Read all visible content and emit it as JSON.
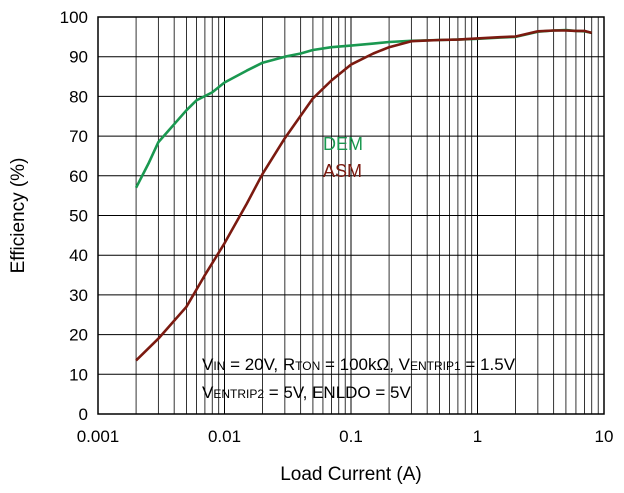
{
  "chart_data": {
    "type": "line",
    "xlabel": "Load Current (A)",
    "ylabel": "Efficiency (%)",
    "xscale": "log",
    "xlim": [
      0.001,
      10
    ],
    "ylim": [
      0,
      100
    ],
    "grid": true,
    "x_ticks": [
      {
        "value": 0.001,
        "label": "0.001"
      },
      {
        "value": 0.01,
        "label": "0.01"
      },
      {
        "value": 0.1,
        "label": "0.1"
      },
      {
        "value": 1,
        "label": "1"
      },
      {
        "value": 10,
        "label": "10"
      }
    ],
    "y_ticks": [
      {
        "value": 0,
        "label": "0"
      },
      {
        "value": 10,
        "label": "10"
      },
      {
        "value": 20,
        "label": "20"
      },
      {
        "value": 30,
        "label": "30"
      },
      {
        "value": 40,
        "label": "40"
      },
      {
        "value": 50,
        "label": "50"
      },
      {
        "value": 60,
        "label": "60"
      },
      {
        "value": 70,
        "label": "70"
      },
      {
        "value": 80,
        "label": "80"
      },
      {
        "value": 90,
        "label": "90"
      },
      {
        "value": 100,
        "label": "100"
      }
    ],
    "series": [
      {
        "name": "DEM",
        "color": "#1a9850",
        "x": [
          0.002,
          0.0025,
          0.003,
          0.004,
          0.005,
          0.006,
          0.008,
          0.01,
          0.015,
          0.02,
          0.03,
          0.04,
          0.05,
          0.07,
          0.1,
          0.15,
          0.2,
          0.3,
          0.5,
          0.7,
          1,
          1.5,
          2,
          3,
          4,
          5,
          6,
          7,
          8
        ],
        "y": [
          57,
          63,
          68.5,
          73,
          76.5,
          79,
          81,
          83.5,
          86.5,
          88.5,
          90,
          90.8,
          91.7,
          92.4,
          92.8,
          93.3,
          93.7,
          94,
          94.2,
          94.3,
          94.5,
          94.8,
          95,
          96.3,
          96.6,
          96.7,
          96.5,
          96.4,
          96
        ]
      },
      {
        "name": "ASM",
        "color": "#7b1a10",
        "x": [
          0.002,
          0.003,
          0.005,
          0.007,
          0.01,
          0.015,
          0.02,
          0.03,
          0.05,
          0.07,
          0.1,
          0.15,
          0.2,
          0.3,
          0.5,
          0.7,
          1,
          1.5,
          2,
          3,
          4,
          5,
          6,
          7,
          8
        ],
        "y": [
          13.5,
          19,
          27,
          35,
          43,
          53,
          60.5,
          69.5,
          79.5,
          84,
          88,
          90.8,
          92.4,
          93.9,
          94.2,
          94.3,
          94.6,
          94.9,
          95.1,
          96.4,
          96.6,
          96.6,
          96.5,
          96.5,
          96
        ]
      }
    ],
    "annotations": {
      "condition_line1": [
        {
          "text": "V",
          "sub": false
        },
        {
          "text": "IN",
          "sub": true
        },
        {
          "text": " = 20V, R",
          "sub": false
        },
        {
          "text": "TON",
          "sub": true
        },
        {
          "text": " = 100kΩ, V",
          "sub": false
        },
        {
          "text": "ENTRIP1",
          "sub": true
        },
        {
          "text": " = 1.5V",
          "sub": false
        }
      ],
      "condition_line2": [
        {
          "text": "V",
          "sub": false
        },
        {
          "text": "ENTRIP2",
          "sub": true
        },
        {
          "text": " = 5V, ENLDO = 5V",
          "sub": false
        }
      ]
    }
  }
}
